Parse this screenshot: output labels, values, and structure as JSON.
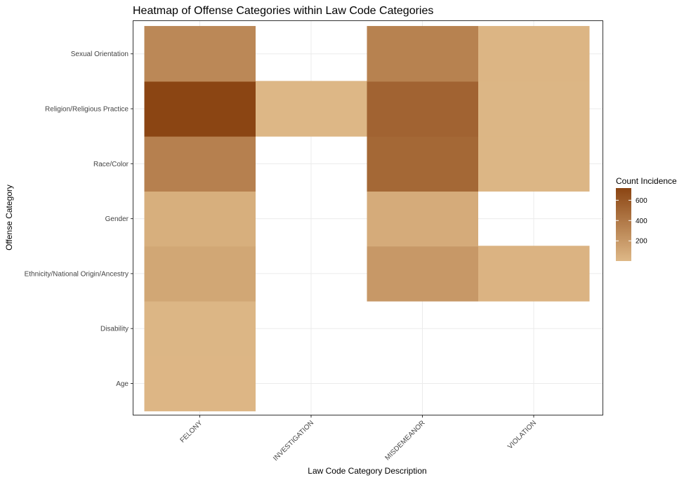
{
  "chart_data": {
    "type": "heatmap",
    "title": "Heatmap of Offense Categories within Law Code Categories",
    "xlabel": "Law Code Category Description",
    "ylabel": "Offense Category",
    "x_categories": [
      "FELONY",
      "INVESTIGATION",
      "MISDEMEANOR",
      "VIOLATION"
    ],
    "y_categories": [
      "Age",
      "Disability",
      "Ethnicity/National Origin/Ancestry",
      "Gender",
      "Race/Color",
      "Religion/Religious Practice",
      "Sexual Orientation"
    ],
    "cells": [
      {
        "x": "FELONY",
        "y": "Age",
        "value": 12
      },
      {
        "x": "FELONY",
        "y": "Disability",
        "value": 15
      },
      {
        "x": "FELONY",
        "y": "Ethnicity/National Origin/Ancestry",
        "value": 110
      },
      {
        "x": "FELONY",
        "y": "Gender",
        "value": 60
      },
      {
        "x": "FELONY",
        "y": "Race/Color",
        "value": 350
      },
      {
        "x": "FELONY",
        "y": "Religion/Religious Practice",
        "value": 720
      },
      {
        "x": "FELONY",
        "y": "Sexual Orientation",
        "value": 300
      },
      {
        "x": "INVESTIGATION",
        "y": "Religion/Religious Practice",
        "value": 10
      },
      {
        "x": "MISDEMEANOR",
        "y": "Ethnicity/National Origin/Ancestry",
        "value": 200
      },
      {
        "x": "MISDEMEANOR",
        "y": "Gender",
        "value": 80
      },
      {
        "x": "MISDEMEANOR",
        "y": "Race/Color",
        "value": 500
      },
      {
        "x": "MISDEMEANOR",
        "y": "Religion/Religious Practice",
        "value": 530
      },
      {
        "x": "MISDEMEANOR",
        "y": "Sexual Orientation",
        "value": 340
      },
      {
        "x": "VIOLATION",
        "y": "Ethnicity/National Origin/Ancestry",
        "value": 30
      },
      {
        "x": "VIOLATION",
        "y": "Race/Color",
        "value": 15
      },
      {
        "x": "VIOLATION",
        "y": "Religion/Religious Practice",
        "value": 15
      },
      {
        "x": "VIOLATION",
        "y": "Sexual Orientation",
        "value": 20
      }
    ],
    "legend": {
      "title": "Count Incidence",
      "ticks": [
        200,
        400,
        600
      ],
      "range": [
        1,
        720
      ],
      "low_color": "#deb887",
      "high_color": "#8b4513",
      "placement": "right"
    },
    "grid": true
  }
}
